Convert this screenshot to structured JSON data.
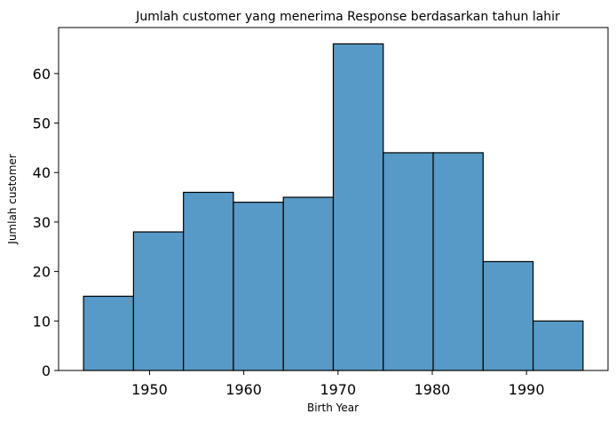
{
  "chart_data": {
    "type": "bar",
    "histogram": true,
    "title": "Jumlah customer yang menerima Response berdasarkan tahun lahir",
    "xlabel": "Birth Year",
    "ylabel": "Jumlah customer",
    "bins": [
      {
        "start": 1943.0,
        "end": 1948.3,
        "count": 15
      },
      {
        "start": 1948.3,
        "end": 1953.6,
        "count": 28
      },
      {
        "start": 1953.6,
        "end": 1958.9,
        "count": 36
      },
      {
        "start": 1958.9,
        "end": 1964.2,
        "count": 34
      },
      {
        "start": 1964.2,
        "end": 1969.5,
        "count": 35
      },
      {
        "start": 1969.5,
        "end": 1974.8,
        "count": 66
      },
      {
        "start": 1974.8,
        "end": 1980.1,
        "count": 44
      },
      {
        "start": 1980.1,
        "end": 1985.4,
        "count": 44
      },
      {
        "start": 1985.4,
        "end": 1990.7,
        "count": 22
      },
      {
        "start": 1990.7,
        "end": 1996.0,
        "count": 10
      }
    ],
    "xlim": [
      1940.35,
      1998.65
    ],
    "ylim": [
      0,
      69.3
    ],
    "xticks": [
      1950,
      1960,
      1970,
      1980,
      1990
    ],
    "yticks": [
      0,
      10,
      20,
      30,
      40,
      50,
      60
    ],
    "grid": false,
    "bar_color": "#5799c7",
    "edge_color": "#000000"
  }
}
